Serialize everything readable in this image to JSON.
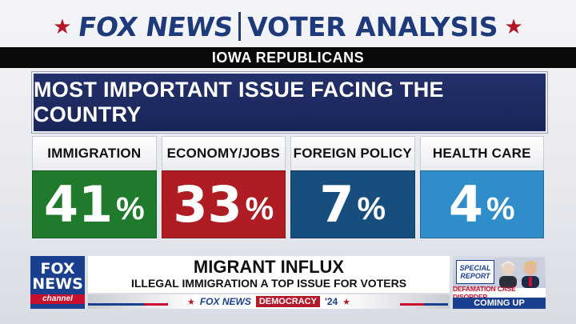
{
  "header": {
    "brand": "FOX NEWS",
    "section": "VOTER ANALYSIS"
  },
  "subtitle": "IOWA REPUBLICANS",
  "question": "MOST IMPORTANT ISSUE FACING THE COUNTRY",
  "issues": [
    {
      "label": "IMMIGRATION",
      "value": "41",
      "pct": "%",
      "color": "#1f7a2c"
    },
    {
      "label": "ECONOMY/JOBS",
      "value": "33",
      "pct": "%",
      "color": "#b01c23"
    },
    {
      "label": "FOREIGN POLICY",
      "value": "7",
      "pct": "%",
      "color": "#174e7e"
    },
    {
      "label": "HEALTH CARE",
      "value": "4",
      "pct": "%",
      "color": "#2f8ec9"
    }
  ],
  "lower_third": {
    "logo": {
      "line1": "FOX",
      "line2": "NEWS",
      "line3": "channel"
    },
    "headline": "MIGRANT INFLUX",
    "subhead": "ILLEGAL IMMIGRATION A TOP ISSUE FOR VOTERS",
    "strip": {
      "brand": "FOX NEWS",
      "tag": "DEMOCRACY",
      "year": "'24"
    },
    "promo": {
      "badge_line1": "SPECIAL",
      "badge_line2": "REPORT",
      "caption": "DEFAMATION CASE DISORDER",
      "status": "COMING UP"
    }
  }
}
